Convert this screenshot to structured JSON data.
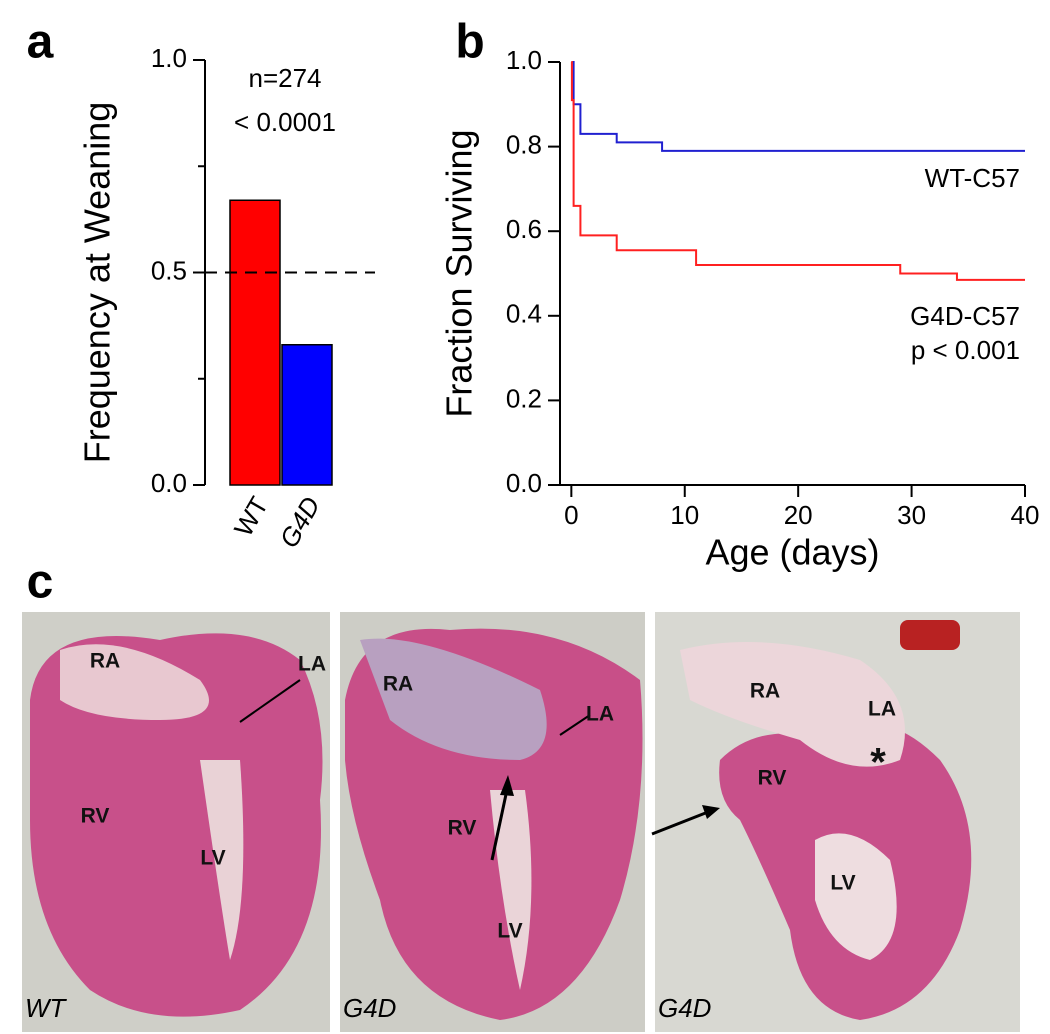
{
  "chart_data": [
    {
      "type": "bar",
      "panel": "a",
      "ylabel": "Frequency at Weaning",
      "categories": [
        "WT",
        "G4D"
      ],
      "values": [
        0.67,
        0.33
      ],
      "colors": [
        "#ff0000",
        "#0000ff"
      ],
      "ylim": [
        0,
        1
      ],
      "yticks": [
        {
          "value": 0,
          "label": "0.0"
        },
        {
          "value": 0.5,
          "label": "0.5"
        },
        {
          "value": 1,
          "label": "1.0"
        }
      ],
      "minor_yticks": [
        0.25,
        0.75
      ],
      "reference_line": 0.5,
      "annotations": [
        "n=274",
        "< 0.0001"
      ]
    },
    {
      "type": "step",
      "panel": "b",
      "xlabel": "Age (days)",
      "ylabel": "Fraction Surviving",
      "series": [
        {
          "name": "WT-C57",
          "color": "#2020d0",
          "x": [
            0,
            0.2,
            0.8,
            4,
            8,
            40
          ],
          "values": [
            1.0,
            0.9,
            0.83,
            0.81,
            0.79,
            0.79
          ]
        },
        {
          "name": "G4D-C57",
          "color": "#ff2020",
          "x": [
            0,
            0.05,
            0.2,
            0.8,
            4,
            11,
            29,
            34,
            40
          ],
          "values": [
            1.0,
            0.91,
            0.66,
            0.59,
            0.555,
            0.52,
            0.5,
            0.485,
            0.485
          ]
        }
      ],
      "annotations": [
        "p < 0.001"
      ],
      "xlim": [
        -1,
        40
      ],
      "xticks": [
        0,
        10,
        20,
        30,
        40
      ],
      "ylim": [
        0,
        1
      ],
      "yticks": [
        {
          "value": 0,
          "label": "0.0"
        },
        {
          "value": 0.2,
          "label": "0.2"
        },
        {
          "value": 0.4,
          "label": "0.4"
        },
        {
          "value": 0.6,
          "label": "0.6"
        },
        {
          "value": 0.8,
          "label": "0.8"
        },
        {
          "value": 1,
          "label": "1.0"
        }
      ]
    }
  ],
  "panel_c": {
    "letter": "c",
    "images": [
      {
        "caption": "WT",
        "labels": [
          "RA",
          "LA",
          "RV",
          "LV"
        ]
      },
      {
        "caption": "G4D",
        "labels": [
          "RA",
          "LA",
          "RV",
          "LV"
        ]
      },
      {
        "caption": "G4D",
        "labels": [
          "RA",
          "LA",
          "RV",
          "LV",
          "*"
        ]
      }
    ]
  }
}
